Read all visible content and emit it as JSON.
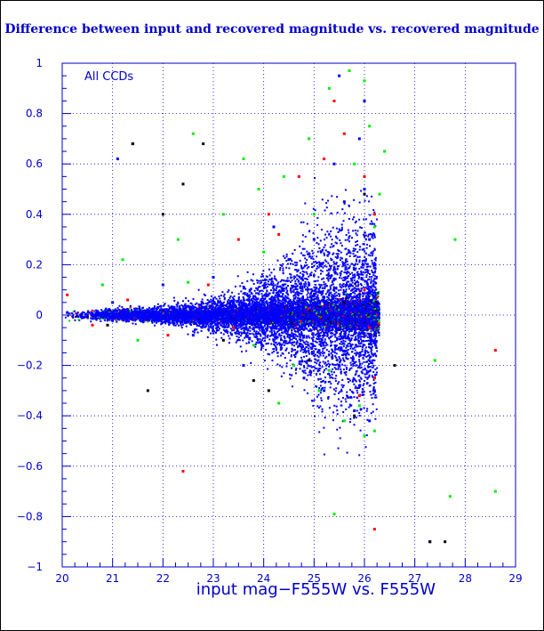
{
  "chart_data": {
    "type": "scatter",
    "title": "Difference between input and recovered magnitude vs. recovered magnitude",
    "xlabel": "input mag−F555W vs. F555W",
    "ylabel": "",
    "annotation": "All CCDs",
    "xlim": [
      20,
      29
    ],
    "ylim": [
      -1,
      1
    ],
    "x_ticks": [
      20,
      21,
      22,
      23,
      24,
      25,
      26,
      27,
      28,
      29
    ],
    "y_ticks": [
      -1,
      -0.8,
      -0.6,
      -0.4,
      -0.2,
      0,
      0.2,
      0.4,
      0.6,
      0.8,
      1
    ],
    "x_tick_labels": [
      "20",
      "21",
      "22",
      "23",
      "24",
      "25",
      "26",
      "27",
      "28",
      "29"
    ],
    "y_tick_labels": [
      "−1",
      "−0.8",
      "−0.6",
      "−0.4",
      "−0.2",
      "0",
      "0.2",
      "0.4",
      "0.6",
      "0.8",
      "1"
    ],
    "grid": "dotted",
    "colors": {
      "axis": "#0000cc",
      "grid": "#0000cc",
      "background": "#ffffff",
      "frame": "#000000"
    },
    "series": [
      {
        "color": "#0000ff",
        "points": [
          [
            20.1,
            0.01
          ],
          [
            20.4,
            -0.01
          ],
          [
            20.7,
            0.015
          ],
          [
            21.0,
            -0.02
          ],
          [
            21.3,
            0.02
          ],
          [
            21.6,
            -0.02
          ],
          [
            21.9,
            0.03
          ],
          [
            22.2,
            -0.03
          ],
          [
            22.5,
            0.035
          ],
          [
            22.8,
            -0.04
          ],
          [
            23.1,
            0.05
          ],
          [
            23.4,
            -0.05
          ],
          [
            23.7,
            0.06
          ],
          [
            24.0,
            -0.07
          ],
          [
            24.3,
            0.08
          ],
          [
            24.6,
            -0.09
          ],
          [
            24.9,
            0.12
          ],
          [
            25.1,
            -0.14
          ],
          [
            25.3,
            0.18
          ],
          [
            25.5,
            -0.2
          ],
          [
            25.7,
            0.25
          ],
          [
            25.9,
            -0.28
          ],
          [
            26.1,
            0.3
          ],
          [
            26.2,
            -0.3
          ],
          [
            24.5,
            0.22
          ],
          [
            25.0,
            0.3
          ],
          [
            25.6,
            0.45
          ],
          [
            26.0,
            0.5
          ],
          [
            26.1,
            -0.42
          ],
          [
            25.8,
            -0.38
          ],
          [
            22.0,
            0.12
          ],
          [
            23.0,
            0.15
          ],
          [
            23.6,
            -0.2
          ],
          [
            24.8,
            -0.25
          ],
          [
            25.4,
            0.6
          ],
          [
            25.9,
            0.7
          ],
          [
            26.0,
            0.85
          ],
          [
            21.0,
            0.05
          ],
          [
            22.6,
            -0.08
          ],
          [
            24.2,
            0.35
          ],
          [
            25.2,
            -0.3
          ],
          [
            26.2,
            0.2
          ],
          [
            21.4,
            0.68
          ],
          [
            21.1,
            0.62
          ],
          [
            25.5,
            0.95
          ],
          [
            27.3,
            -0.9
          ]
        ]
      },
      {
        "color": "#00ee00",
        "points": [
          [
            20.8,
            0.12
          ],
          [
            21.2,
            0.22
          ],
          [
            22.3,
            0.3
          ],
          [
            23.2,
            0.4
          ],
          [
            23.9,
            0.5
          ],
          [
            24.4,
            0.55
          ],
          [
            24.9,
            0.7
          ],
          [
            25.3,
            0.9
          ],
          [
            25.7,
            0.97
          ],
          [
            26.0,
            0.93
          ],
          [
            23.8,
            -0.12
          ],
          [
            24.6,
            -0.2
          ],
          [
            25.1,
            -0.3
          ],
          [
            25.6,
            -0.42
          ],
          [
            26.0,
            -0.48
          ],
          [
            26.2,
            -0.46
          ],
          [
            25.3,
            -0.22
          ],
          [
            24.0,
            0.25
          ],
          [
            22.5,
            0.13
          ],
          [
            21.5,
            -0.1
          ],
          [
            25.0,
            0.4
          ],
          [
            25.8,
            0.6
          ],
          [
            26.1,
            0.75
          ],
          [
            22.6,
            0.72
          ],
          [
            23.6,
            0.62
          ],
          [
            26.3,
            0.48
          ],
          [
            25.4,
            -0.79
          ],
          [
            27.4,
            -0.18
          ],
          [
            27.7,
            -0.72
          ],
          [
            27.8,
            0.3
          ],
          [
            28.6,
            -0.7
          ],
          [
            26.4,
            0.65
          ],
          [
            24.3,
            -0.35
          ],
          [
            25.9,
            -0.36
          ],
          [
            26.2,
            0.35
          ]
        ]
      },
      {
        "color": "#ff0000",
        "points": [
          [
            20.1,
            0.08
          ],
          [
            20.6,
            -0.04
          ],
          [
            21.3,
            0.06
          ],
          [
            22.1,
            -0.08
          ],
          [
            22.9,
            0.12
          ],
          [
            23.5,
            0.3
          ],
          [
            24.1,
            0.4
          ],
          [
            24.7,
            0.55
          ],
          [
            25.2,
            0.62
          ],
          [
            25.6,
            0.72
          ],
          [
            26.0,
            0.55
          ],
          [
            26.2,
            0.4
          ],
          [
            26.2,
            -0.25
          ],
          [
            25.9,
            -0.32
          ],
          [
            25.4,
            0.85
          ],
          [
            24.3,
            0.32
          ],
          [
            23.4,
            -0.05
          ],
          [
            22.4,
            -0.62
          ],
          [
            26.2,
            -0.85
          ],
          [
            28.6,
            -0.14
          ],
          [
            26.0,
            0.1
          ],
          [
            26.1,
            -0.05
          ]
        ]
      },
      {
        "color": "#000000",
        "points": [
          [
            20.9,
            -0.04
          ],
          [
            21.7,
            -0.3
          ],
          [
            22.4,
            0.52
          ],
          [
            23.2,
            -0.1
          ],
          [
            24.1,
            -0.3
          ],
          [
            24.9,
            -0.18
          ],
          [
            25.6,
            0.05
          ],
          [
            25.8,
            -0.4
          ],
          [
            26.0,
            0.48
          ],
          [
            27.3,
            -0.9
          ],
          [
            27.6,
            -0.9
          ],
          [
            26.6,
            -0.2
          ],
          [
            21.4,
            0.68
          ],
          [
            22.0,
            0.4
          ],
          [
            23.8,
            -0.26
          ],
          [
            22.8,
            0.68
          ]
        ]
      }
    ]
  }
}
